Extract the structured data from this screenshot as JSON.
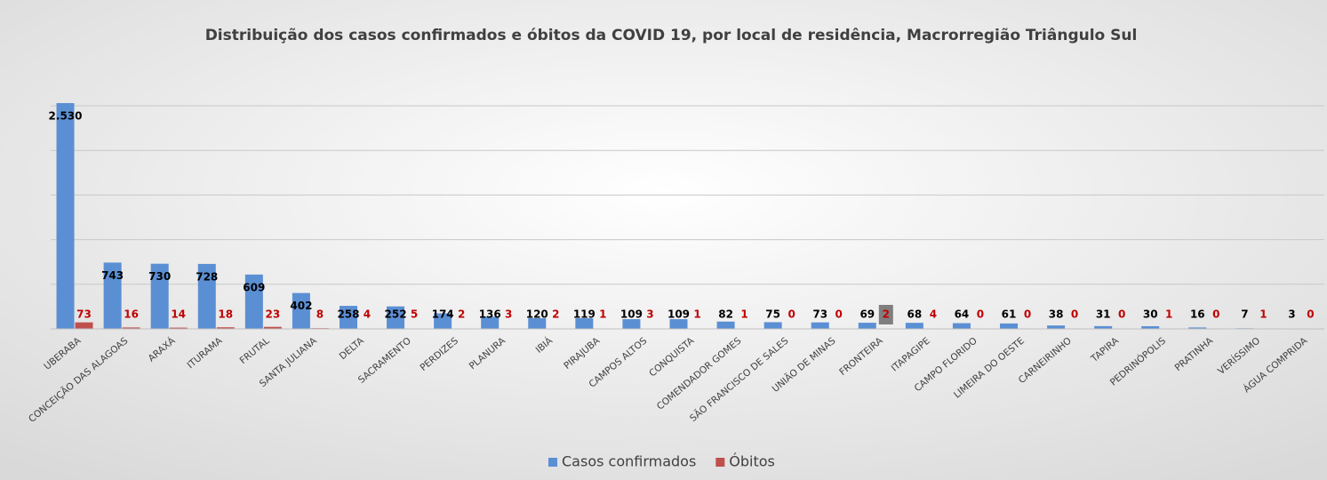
{
  "chart_data": {
    "type": "bar",
    "title": "Distribuição dos casos confirmados e óbitos da COVID 19, por local de residência, Macrorregião Triângulo Sul",
    "categories": [
      "UBERABA",
      "CONCEIÇÃO DAS ALAGOAS",
      "ARAXÁ",
      "ITURAMA",
      "FRUTAL",
      "SANTA JULIANA",
      "DELTA",
      "SACRAMENTO",
      "PERDIZES",
      "PLANURA",
      "IBIÁ",
      "PIRAJUBA",
      "CAMPOS ALTOS",
      "CONQUISTA",
      "COMENDADOR GOMES",
      "SÃO FRANCISCO DE SALES",
      "UNIÃO DE MINAS",
      "FRONTEIRA",
      "ITAPAGIPE",
      "CAMPO FLORIDO",
      "LIMEIRA DO OESTE",
      "CARNEIRINHO",
      "TAPIRA",
      "PEDRINÓPOLIS",
      "PRATINHA",
      "VERÍSSIMO",
      "ÁGUA COMPRIDA"
    ],
    "series": [
      {
        "name": "Casos confirmados",
        "color": "#5b8fd4",
        "values": [
          2530,
          743,
          730,
          728,
          609,
          402,
          258,
          252,
          174,
          136,
          120,
          119,
          109,
          109,
          82,
          75,
          73,
          69,
          68,
          64,
          61,
          38,
          31,
          30,
          16,
          7,
          3
        ],
        "value_labels": [
          "2.530",
          "743",
          "730",
          "728",
          "609",
          "402",
          "258",
          "252",
          "174",
          "136",
          "120",
          "119",
          "109",
          "109",
          "82",
          "75",
          "73",
          "69",
          "68",
          "64",
          "61",
          "38",
          "31",
          "30",
          "16",
          "7",
          "3"
        ]
      },
      {
        "name": "Óbitos",
        "color": "#c0504d",
        "values": [
          73,
          16,
          14,
          18,
          23,
          8,
          4,
          5,
          2,
          3,
          2,
          1,
          3,
          1,
          1,
          0,
          0,
          2,
          4,
          0,
          0,
          0,
          0,
          1,
          0,
          1,
          0
        ]
      }
    ],
    "ylim": [
      0,
      3000
    ],
    "yticks": [
      0,
      500,
      1000,
      1500,
      2000,
      2500
    ],
    "grid": true,
    "legend": "bottom"
  }
}
